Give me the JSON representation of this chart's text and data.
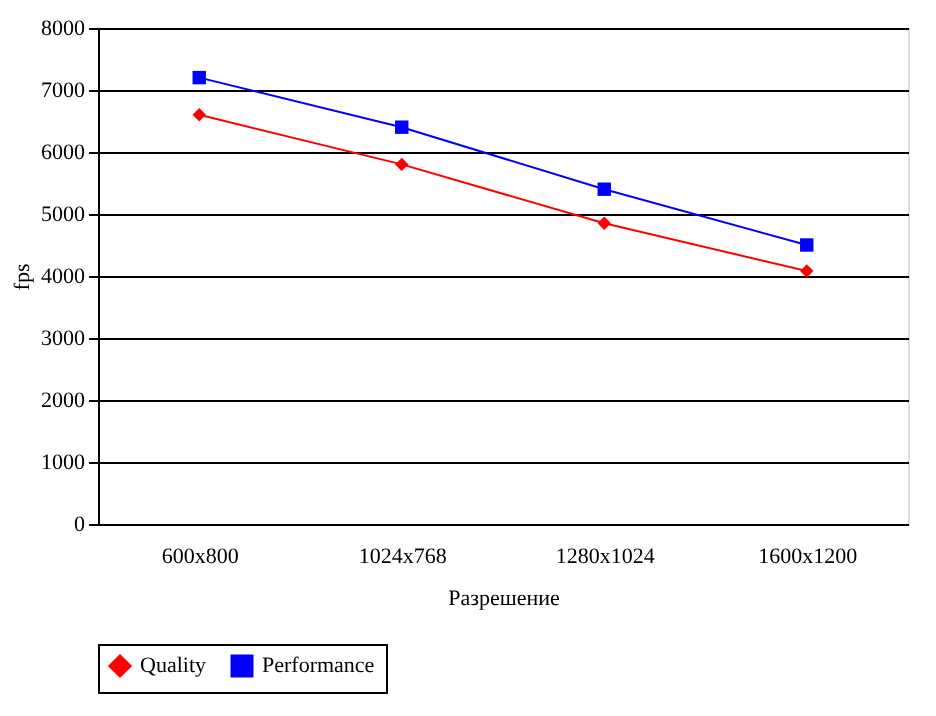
{
  "chart_data": {
    "type": "line",
    "xlabel": "Разрешение",
    "ylabel": "fps",
    "categories": [
      "600x800",
      "1024x768",
      "1280x1024",
      "1600x1200"
    ],
    "series": [
      {
        "name": "Quality",
        "color": "#ff0000",
        "marker": "diamond",
        "values": [
          6600,
          5800,
          4850,
          4080
        ]
      },
      {
        "name": "Performance",
        "color": "#0000ff",
        "marker": "square",
        "values": [
          7200,
          6400,
          5400,
          4500
        ]
      }
    ],
    "ylim": [
      0,
      8000
    ],
    "yticks": [
      0,
      1000,
      2000,
      3000,
      4000,
      5000,
      6000,
      7000,
      8000
    ],
    "grid": "y",
    "legend": "bottom",
    "line_style": "solid"
  }
}
